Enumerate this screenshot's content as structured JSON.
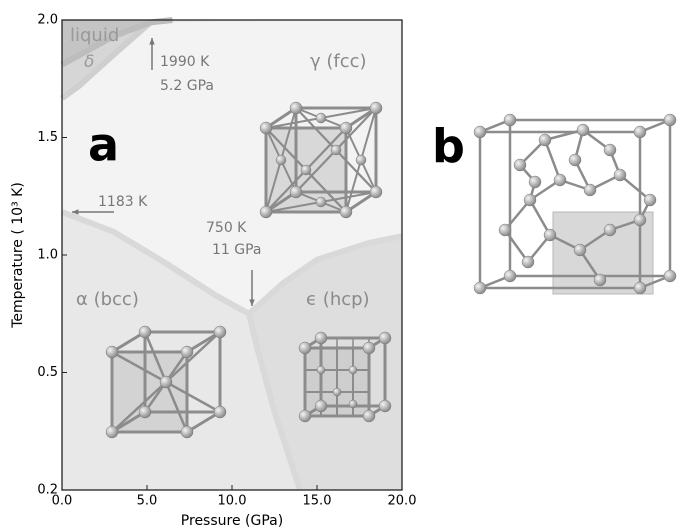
{
  "chart_data": {
    "type": "phase-diagram",
    "xlabel": "Pressure (GPa)",
    "ylabel": "Temperature ( 10³ K)",
    "xlim": [
      0,
      20
    ],
    "ylim": [
      0.2,
      2.0
    ],
    "xticks": [
      {
        "value": 0,
        "label": "0.0"
      },
      {
        "value": 5,
        "label": "5.0"
      },
      {
        "value": 10,
        "label": "10.0"
      },
      {
        "value": 15,
        "label": "15.0"
      },
      {
        "value": 20,
        "label": "20.0"
      }
    ],
    "yticks": [
      0.2,
      0.5,
      {
        "value": 1,
        "label": "1.0"
      },
      1.5,
      {
        "value": 2,
        "label": "2.0"
      }
    ],
    "boundaries": [
      {
        "color": "#d9d9d9",
        "x": [
          0,
          3,
          6,
          9,
          11
        ],
        "values": [
          1.183,
          1.1,
          0.97,
          0.83,
          0.75
        ]
      },
      {
        "color": "#d9d9d9",
        "x": [
          11,
          13,
          15,
          18,
          20
        ],
        "values": [
          0.75,
          0.88,
          0.98,
          1.05,
          1.08
        ]
      },
      {
        "color": "#d9d9d9",
        "x": [
          11,
          11.5,
          12.5,
          14
        ],
        "values": [
          0.75,
          0.6,
          0.4,
          0.2
        ]
      },
      {
        "color": "#cfcfcf",
        "x": [
          0,
          1,
          3,
          5.2
        ],
        "values": [
          1.667,
          1.72,
          1.85,
          1.99
        ]
      },
      {
        "color": "#bdbdbd",
        "x": [
          0,
          3,
          5.2,
          6.5
        ],
        "values": [
          1.81,
          1.93,
          1.99,
          2.0
        ]
      }
    ],
    "regions": [
      "liquid",
      "δ",
      "γ (fcc)",
      "α (bcc)",
      "ϵ (hcp)"
    ],
    "annotations": [
      "1990 K",
      "5.2 GPa",
      "1183 K",
      "750 K",
      "11 GPa"
    ],
    "panels": [
      "a",
      "b"
    ]
  }
}
